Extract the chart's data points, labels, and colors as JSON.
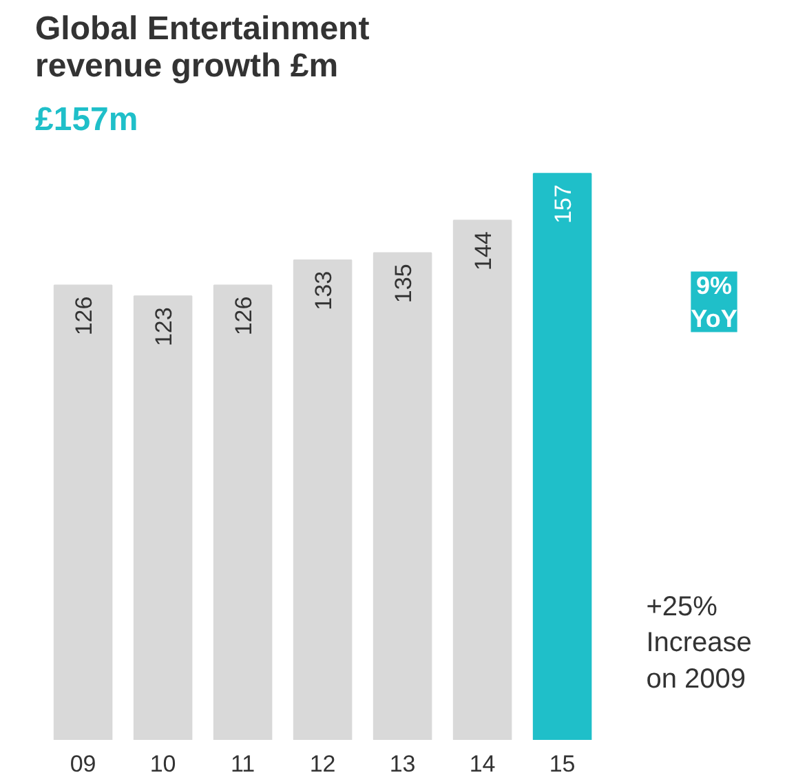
{
  "chart_data": {
    "type": "bar",
    "title": "Global Entertainment\nrevenue growth £m",
    "subtitle": "£157m",
    "categories": [
      "09",
      "10",
      "11",
      "12",
      "13",
      "14",
      "15"
    ],
    "values": [
      126,
      123,
      126,
      133,
      135,
      144,
      157
    ],
    "colors": [
      "#d9d9d9",
      "#d9d9d9",
      "#d9d9d9",
      "#d9d9d9",
      "#d9d9d9",
      "#d9d9d9",
      "#1fbfc9"
    ],
    "data_labels": true,
    "annotations": [
      "9%\nYoY",
      "+25%\nIncrease\non 2009"
    ]
  }
}
